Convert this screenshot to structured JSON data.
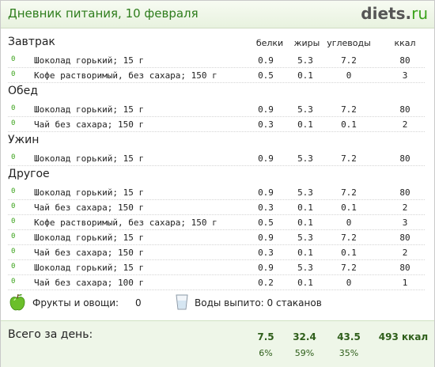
{
  "header": {
    "title": "Дневник питания, 10 февраля",
    "logo_main": "diets",
    "logo_dot": ".",
    "logo_tld": "ru"
  },
  "columns": {
    "protein": "белки",
    "fat": "жиры",
    "carbs": "углеводы",
    "kcal": "ккал"
  },
  "sections": [
    {
      "title": "Завтрак",
      "rows": [
        {
          "zero": "0",
          "name": "Шоколад горький; 15 г",
          "protein": "0.9",
          "fat": "5.3",
          "carbs": "7.2",
          "kcal": "80"
        },
        {
          "zero": "0",
          "name": "Кофе растворимый, без сахара; 150 г",
          "protein": "0.5",
          "fat": "0.1",
          "carbs": "0",
          "kcal": "3"
        }
      ]
    },
    {
      "title": "Обед",
      "rows": [
        {
          "zero": "0",
          "name": "Шоколад горький; 15 г",
          "protein": "0.9",
          "fat": "5.3",
          "carbs": "7.2",
          "kcal": "80"
        },
        {
          "zero": "0",
          "name": "Чай без сахара; 150 г",
          "protein": "0.3",
          "fat": "0.1",
          "carbs": "0.1",
          "kcal": "2"
        }
      ]
    },
    {
      "title": "Ужин",
      "rows": [
        {
          "zero": "0",
          "name": "Шоколад горький; 15 г",
          "protein": "0.9",
          "fat": "5.3",
          "carbs": "7.2",
          "kcal": "80"
        }
      ]
    },
    {
      "title": "Другое",
      "rows": [
        {
          "zero": "0",
          "name": "Шоколад горький; 15 г",
          "protein": "0.9",
          "fat": "5.3",
          "carbs": "7.2",
          "kcal": "80"
        },
        {
          "zero": "0",
          "name": "Чай без сахара; 150 г",
          "protein": "0.3",
          "fat": "0.1",
          "carbs": "0.1",
          "kcal": "2"
        },
        {
          "zero": "0",
          "name": "Кофе растворимый, без сахара; 150 г",
          "protein": "0.5",
          "fat": "0.1",
          "carbs": "0",
          "kcal": "3"
        },
        {
          "zero": "0",
          "name": "Шоколад горький; 15 г",
          "protein": "0.9",
          "fat": "5.3",
          "carbs": "7.2",
          "kcal": "80"
        },
        {
          "zero": "0",
          "name": "Чай без сахара; 150 г",
          "protein": "0.3",
          "fat": "0.1",
          "carbs": "0.1",
          "kcal": "2"
        },
        {
          "zero": "0",
          "name": "Шоколад горький; 15 г",
          "protein": "0.9",
          "fat": "5.3",
          "carbs": "7.2",
          "kcal": "80"
        },
        {
          "zero": "0",
          "name": "Чай без сахара; 100 г",
          "protein": "0.2",
          "fat": "0.1",
          "carbs": "0",
          "kcal": "1"
        }
      ]
    }
  ],
  "extras": {
    "fruit_label": "Фрукты и овощи:",
    "fruit_value": "0",
    "fruit_icon": "apple-icon",
    "water_label": "Воды выпито: 0 стаканов",
    "water_icon": "glass-icon"
  },
  "totals": {
    "label": "Всего за день:",
    "protein": "7.5",
    "fat": "32.4",
    "carbs": "43.5",
    "kcal": "493 ккал",
    "protein_pct": "6%",
    "fat_pct": "59%",
    "carbs_pct": "35%"
  },
  "colors": {
    "accent_green": "#2e7d1c",
    "zero_green": "#3aa21a",
    "totals_bg": "#eef6e8"
  }
}
